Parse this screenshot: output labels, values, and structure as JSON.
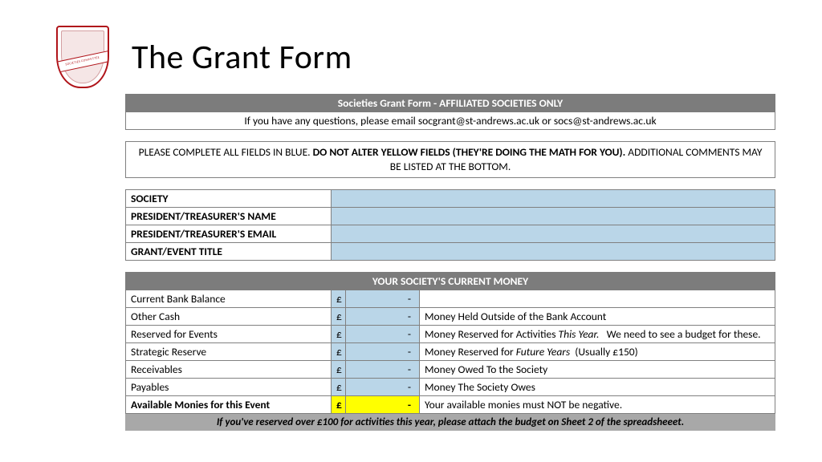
{
  "page_title": "The Grant Form",
  "logo": {
    "banner_text": "SOCIETIES COMMITTEE"
  },
  "form_header": "Societies Grant Form - AFFILIATED SOCIETIES ONLY",
  "contact_note": "If you have any questions, please email socgrant@st-andrews.ac.uk or socs@st-andrews.ac.uk",
  "instruction": {
    "prefix": "PLEASE COMPLETE ALL FIELDS IN BLUE. ",
    "bold": "DO NOT ALTER YELLOW FIELDS (THEY'RE DOING THE MATH FOR YOU).",
    "suffix": " ADDITIONAL COMMENTS MAY BE LISTED AT THE BOTTOM."
  },
  "info_fields": [
    {
      "label": "SOCIETY",
      "value": ""
    },
    {
      "label": "PRESIDENT/TREASURER'S NAME",
      "value": ""
    },
    {
      "label": "PRESIDENT/TREASURER'S EMAIL",
      "value": ""
    },
    {
      "label": "GRANT/EVENT TITLE",
      "value": ""
    }
  ],
  "money_header": "YOUR SOCIETY'S CURRENT MONEY",
  "currency_symbol": "£",
  "dash": "-",
  "money_rows": [
    {
      "label": "Current Bank Balance",
      "desc": "",
      "fill": "blue",
      "bold": false
    },
    {
      "label": "Other Cash",
      "desc": "Money Held Outside of the Bank Account",
      "fill": "blue",
      "bold": false
    },
    {
      "label": "Reserved for Events",
      "desc_html": "Money Reserved for Activities <i>This Year.</i>&nbsp;&nbsp; We need to see a budget for these.",
      "fill": "blue",
      "bold": false
    },
    {
      "label": "Strategic Reserve",
      "desc_html": "Money Reserved for <i>Future Years</i>&nbsp; (Usually £150)",
      "fill": "blue",
      "bold": false
    },
    {
      "label": "Receivables",
      "desc": "Money Owed To the Society",
      "fill": "blue",
      "bold": false
    },
    {
      "label": "Payables",
      "desc": "Money The Society Owes",
      "fill": "blue",
      "bold": false
    },
    {
      "label": "Available Monies for this Event",
      "desc": "Your available monies must NOT be negative.",
      "fill": "yellow",
      "bold": true
    }
  ],
  "footer_note": "If you've reserved over £100 for activities this year, please attach the budget on Sheet 2 of the spreadsheeet.",
  "colors": {
    "header_bar": "#7c7c7c",
    "footer_bar": "#a8a8a8",
    "blue_fill": "#bad6e8",
    "yellow_fill": "#ffff00",
    "border": "#808080",
    "logo_red": "#b0141a"
  }
}
